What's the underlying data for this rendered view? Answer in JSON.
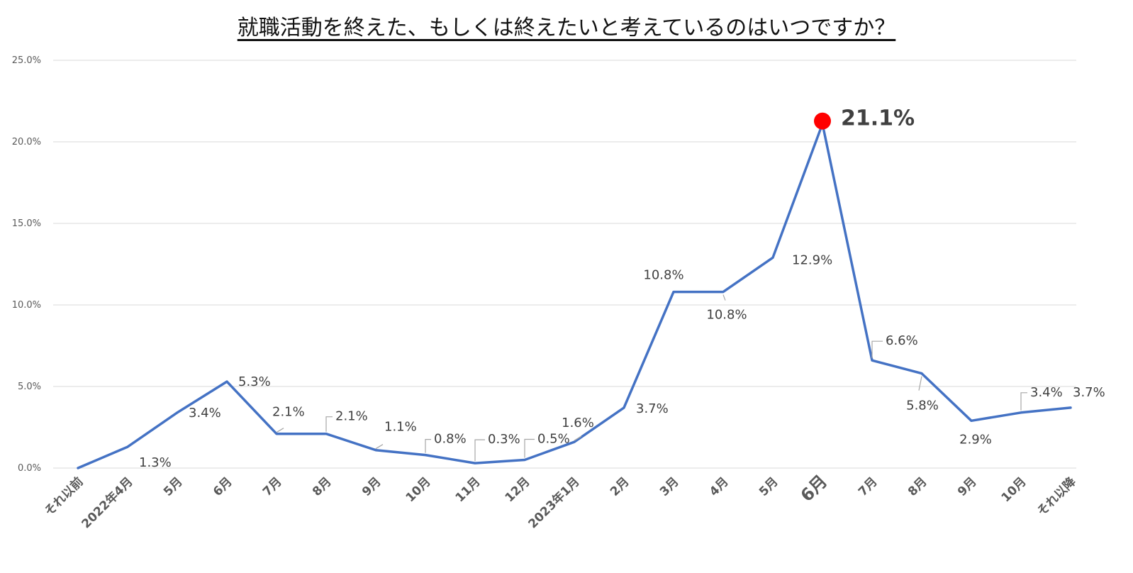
{
  "chart_data": {
    "type": "line",
    "title": "就職活動を終えた、もしくは終えたいと考えているのはいつですか？",
    "xlabel": "",
    "ylabel": "",
    "ylim": [
      0,
      25
    ],
    "yticks": [
      "0.0%",
      "5.0%",
      "10.0%",
      "15.0%",
      "20.0%",
      "25.0%"
    ],
    "grid": true,
    "categories": [
      "それ以前",
      "2022年4月",
      "5月",
      "6月",
      "7月",
      "8月",
      "9月",
      "10月",
      "11月",
      "12月",
      "2023年1月",
      "2月",
      "3月",
      "4月",
      "5月",
      "6月",
      "7月",
      "8月",
      "9月",
      "10月",
      "それ以降"
    ],
    "values": [
      0.0,
      1.3,
      3.4,
      5.3,
      2.1,
      2.1,
      1.1,
      0.8,
      0.3,
      0.5,
      1.6,
      3.7,
      10.8,
      10.8,
      12.9,
      21.1,
      6.6,
      5.8,
      2.9,
      3.4,
      3.7
    ],
    "data_labels": [
      "",
      "1.3%",
      "3.4%",
      "5.3%",
      "2.1%",
      "2.1%",
      "1.1%",
      "0.8%",
      "0.3%",
      "0.5%",
      "1.6%",
      "3.7%",
      "10.8%",
      "10.8%",
      "12.9%",
      "21.1%",
      "6.6%",
      "5.8%",
      "2.9%",
      "3.4%",
      "3.7%"
    ],
    "highlight_index": 15,
    "colors": {
      "line": "#4472c4",
      "highlight": "#ff0000",
      "label": "#404040",
      "tick": "#595959",
      "grid": "#d9d9d9"
    }
  }
}
